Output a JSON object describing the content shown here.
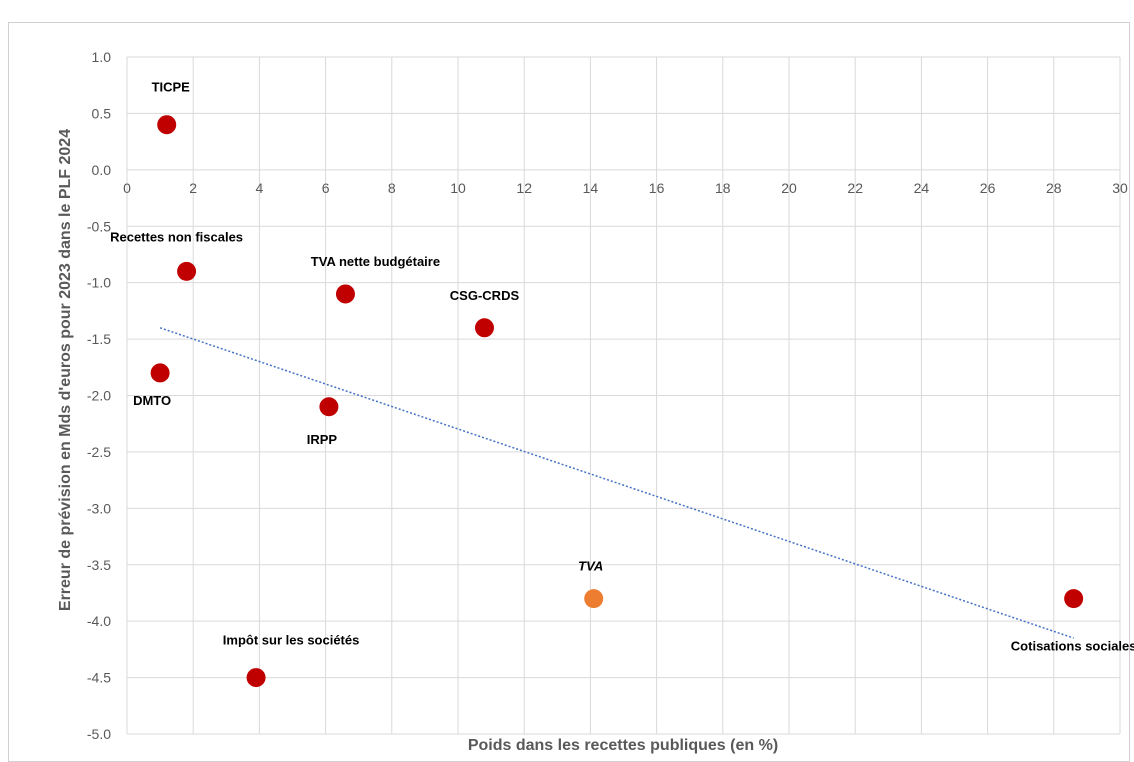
{
  "chart_data": {
    "type": "scatter",
    "title": "",
    "xlabel": "Poids dans les recettes publiques (en %)",
    "ylabel": "Erreur de prévision en Mds d'euros pour 2023 dans le PLF 2024",
    "xlim": [
      0,
      30
    ],
    "ylim": [
      -5,
      1
    ],
    "x_ticks": [
      "0",
      "2",
      "4",
      "6",
      "8",
      "10",
      "12",
      "14",
      "16",
      "18",
      "20",
      "22",
      "24",
      "26",
      "28",
      "30"
    ],
    "y_ticks": [
      "1.0",
      "0.5",
      "0.0",
      "-0.5",
      "-1.0",
      "-1.5",
      "-2.0",
      "-2.5",
      "-3.0",
      "-3.5",
      "-4.0",
      "-4.5",
      "-5.0"
    ],
    "grid": true,
    "points": [
      {
        "label": "TICPE",
        "x": 1.2,
        "y": 0.4,
        "color": "#c00000",
        "italic": false
      },
      {
        "label": "Recettes non fiscales",
        "x": 1.8,
        "y": -0.9,
        "color": "#c00000",
        "italic": false
      },
      {
        "label": "DMTO",
        "x": 1.0,
        "y": -1.8,
        "color": "#c00000",
        "italic": false
      },
      {
        "label": "TVA nette budgétaire",
        "x": 6.6,
        "y": -1.1,
        "color": "#c00000",
        "italic": false
      },
      {
        "label": "IRPP",
        "x": 6.1,
        "y": -2.1,
        "color": "#c00000",
        "italic": false
      },
      {
        "label": "CSG-CRDS",
        "x": 10.8,
        "y": -1.4,
        "color": "#c00000",
        "italic": false
      },
      {
        "label": "Impôt sur les sociétés",
        "x": 3.9,
        "y": -4.5,
        "color": "#c00000",
        "italic": false
      },
      {
        "label": "TVA",
        "x": 14.1,
        "y": -3.8,
        "color": "#ed7d31",
        "italic": true
      },
      {
        "label": "Cotisations sociales",
        "x": 28.6,
        "y": -3.8,
        "color": "#c00000",
        "italic": false
      }
    ],
    "trendline": {
      "x": [
        1.0,
        28.6
      ],
      "y": [
        -1.4,
        -4.15
      ],
      "color": "#4472c4",
      "style": "dotted"
    }
  }
}
